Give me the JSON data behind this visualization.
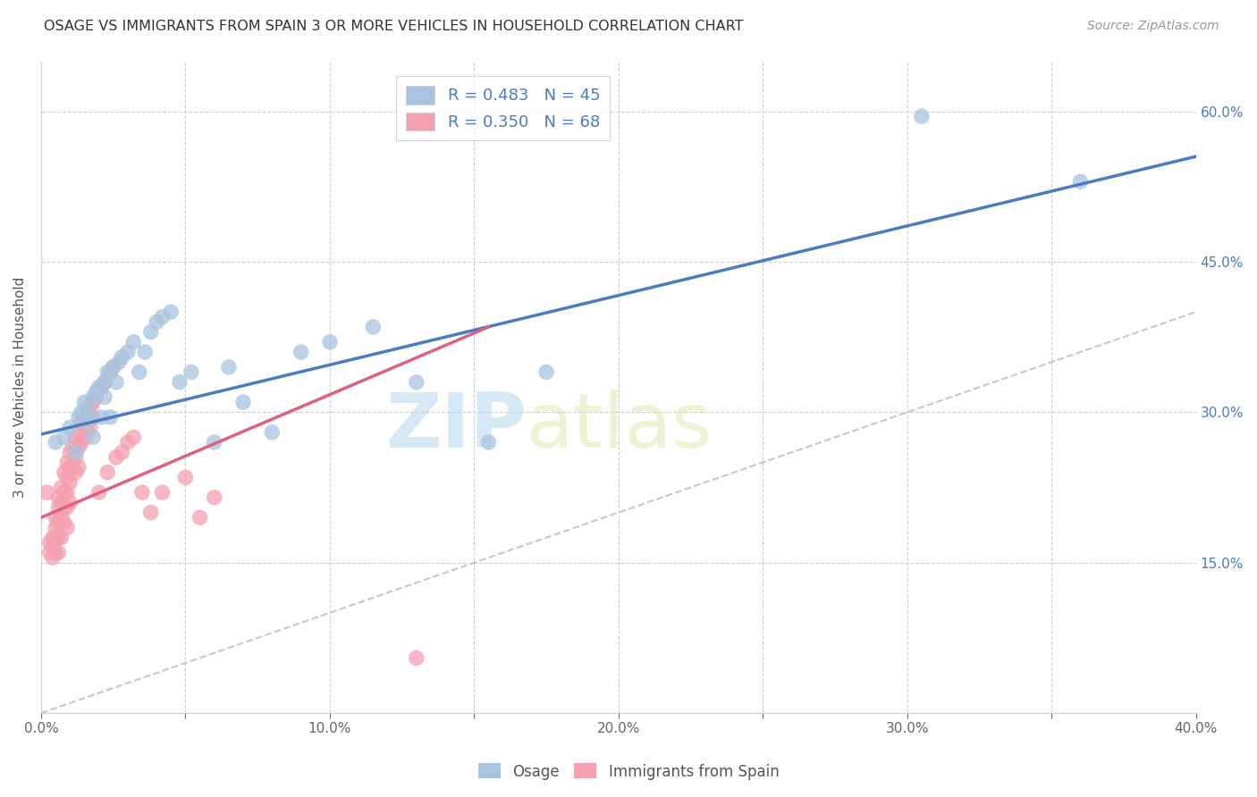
{
  "title": "OSAGE VS IMMIGRANTS FROM SPAIN 3 OR MORE VEHICLES IN HOUSEHOLD CORRELATION CHART",
  "source": "Source: ZipAtlas.com",
  "ylabel": "3 or more Vehicles in Household",
  "xlim": [
    0.0,
    0.4
  ],
  "ylim": [
    0.0,
    0.65
  ],
  "xticks": [
    0.0,
    0.05,
    0.1,
    0.15,
    0.2,
    0.25,
    0.3,
    0.35,
    0.4
  ],
  "xticklabels": [
    "0.0%",
    "",
    "10.0%",
    "",
    "20.0%",
    "",
    "30.0%",
    "",
    "40.0%"
  ],
  "yticks": [
    0.0,
    0.15,
    0.3,
    0.45,
    0.6
  ],
  "yticklabels": [
    "",
    "15.0%",
    "30.0%",
    "45.0%",
    "60.0%"
  ],
  "R_osage": 0.483,
  "N_osage": 45,
  "R_spain": 0.35,
  "N_spain": 68,
  "color_osage": "#a8c4e0",
  "color_spain": "#f4a0b0",
  "line_color_osage": "#4a7cc0",
  "line_color_spain": "#e06080",
  "diagonal_color": "#c8c8c8",
  "watermark_zip": "ZIP",
  "watermark_atlas": "atlas",
  "legend_labels": [
    "Osage",
    "Immigrants from Spain"
  ],
  "osage_x": [
    0.005,
    0.008,
    0.01,
    0.012,
    0.013,
    0.014,
    0.015,
    0.016,
    0.016,
    0.017,
    0.018,
    0.018,
    0.019,
    0.02,
    0.021,
    0.022,
    0.022,
    0.023,
    0.024,
    0.025,
    0.026,
    0.027,
    0.028,
    0.03,
    0.032,
    0.034,
    0.036,
    0.038,
    0.04,
    0.042,
    0.045,
    0.048,
    0.052,
    0.06,
    0.065,
    0.07,
    0.08,
    0.09,
    0.1,
    0.115,
    0.13,
    0.155,
    0.175,
    0.305,
    0.36
  ],
  "osage_y": [
    0.27,
    0.275,
    0.285,
    0.26,
    0.295,
    0.3,
    0.31,
    0.29,
    0.305,
    0.295,
    0.315,
    0.275,
    0.32,
    0.325,
    0.295,
    0.33,
    0.315,
    0.34,
    0.295,
    0.345,
    0.33,
    0.35,
    0.355,
    0.36,
    0.37,
    0.34,
    0.36,
    0.38,
    0.39,
    0.395,
    0.4,
    0.33,
    0.34,
    0.27,
    0.345,
    0.31,
    0.28,
    0.36,
    0.37,
    0.385,
    0.33,
    0.27,
    0.34,
    0.595,
    0.53
  ],
  "spain_x": [
    0.002,
    0.003,
    0.003,
    0.004,
    0.004,
    0.004,
    0.005,
    0.005,
    0.005,
    0.005,
    0.006,
    0.006,
    0.006,
    0.006,
    0.006,
    0.007,
    0.007,
    0.007,
    0.007,
    0.008,
    0.008,
    0.008,
    0.008,
    0.009,
    0.009,
    0.009,
    0.009,
    0.009,
    0.01,
    0.01,
    0.01,
    0.01,
    0.011,
    0.011,
    0.012,
    0.012,
    0.012,
    0.013,
    0.013,
    0.013,
    0.014,
    0.014,
    0.015,
    0.015,
    0.016,
    0.016,
    0.017,
    0.017,
    0.018,
    0.018,
    0.019,
    0.02,
    0.021,
    0.022,
    0.023,
    0.024,
    0.025,
    0.026,
    0.028,
    0.03,
    0.032,
    0.035,
    0.038,
    0.042,
    0.05,
    0.055,
    0.06,
    0.13
  ],
  "spain_y": [
    0.22,
    0.17,
    0.16,
    0.175,
    0.165,
    0.155,
    0.195,
    0.185,
    0.175,
    0.16,
    0.215,
    0.205,
    0.19,
    0.175,
    0.16,
    0.225,
    0.21,
    0.195,
    0.175,
    0.24,
    0.22,
    0.205,
    0.19,
    0.25,
    0.235,
    0.22,
    0.205,
    0.185,
    0.26,
    0.245,
    0.23,
    0.21,
    0.265,
    0.245,
    0.275,
    0.255,
    0.24,
    0.28,
    0.265,
    0.245,
    0.29,
    0.27,
    0.295,
    0.275,
    0.3,
    0.28,
    0.305,
    0.285,
    0.31,
    0.295,
    0.315,
    0.22,
    0.325,
    0.33,
    0.24,
    0.34,
    0.345,
    0.255,
    0.26,
    0.27,
    0.275,
    0.22,
    0.2,
    0.22,
    0.235,
    0.195,
    0.215,
    0.055
  ],
  "osage_trend_x": [
    0.0,
    0.4
  ],
  "osage_trend_y": [
    0.278,
    0.555
  ],
  "spain_trend_x": [
    0.0,
    0.155
  ],
  "spain_trend_y": [
    0.195,
    0.385
  ]
}
